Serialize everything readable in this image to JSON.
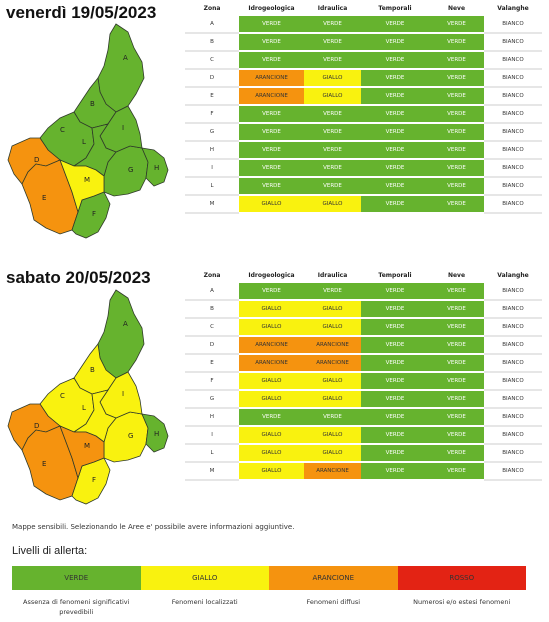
{
  "columns": [
    "Zona",
    "Idrogeologica",
    "Idraulica",
    "Temporali",
    "Neve",
    "Valanghe"
  ],
  "colors": {
    "VERDE": "#66b32e",
    "GIALLO": "#f9f20f",
    "ARANCIONE": "#f5930f",
    "ROSSO": "#e32314"
  },
  "days": [
    {
      "title": "venerdì 19/05/2023",
      "rows": [
        [
          "A",
          "VERDE",
          "VERDE",
          "VERDE",
          "VERDE",
          "BIANCO"
        ],
        [
          "B",
          "VERDE",
          "VERDE",
          "VERDE",
          "VERDE",
          "BIANCO"
        ],
        [
          "C",
          "VERDE",
          "VERDE",
          "VERDE",
          "VERDE",
          "BIANCO"
        ],
        [
          "D",
          "ARANCIONE",
          "GIALLO",
          "VERDE",
          "VERDE",
          "BIANCO"
        ],
        [
          "E",
          "ARANCIONE",
          "GIALLO",
          "VERDE",
          "VERDE",
          "BIANCO"
        ],
        [
          "F",
          "VERDE",
          "VERDE",
          "VERDE",
          "VERDE",
          "BIANCO"
        ],
        [
          "G",
          "VERDE",
          "VERDE",
          "VERDE",
          "VERDE",
          "BIANCO"
        ],
        [
          "H",
          "VERDE",
          "VERDE",
          "VERDE",
          "VERDE",
          "BIANCO"
        ],
        [
          "I",
          "VERDE",
          "VERDE",
          "VERDE",
          "VERDE",
          "BIANCO"
        ],
        [
          "L",
          "VERDE",
          "VERDE",
          "VERDE",
          "VERDE",
          "BIANCO"
        ],
        [
          "M",
          "GIALLO",
          "GIALLO",
          "VERDE",
          "VERDE",
          "BIANCO"
        ]
      ],
      "map_zone_levels": {
        "A": "VERDE",
        "B": "VERDE",
        "C": "VERDE",
        "D": "ARANCIONE",
        "E": "ARANCIONE",
        "F": "VERDE",
        "G": "VERDE",
        "H": "VERDE",
        "I": "VERDE",
        "L": "VERDE",
        "M": "GIALLO"
      }
    },
    {
      "title": "sabato 20/05/2023",
      "rows": [
        [
          "A",
          "VERDE",
          "VERDE",
          "VERDE",
          "VERDE",
          "BIANCO"
        ],
        [
          "B",
          "GIALLO",
          "GIALLO",
          "VERDE",
          "VERDE",
          "BIANCO"
        ],
        [
          "C",
          "GIALLO",
          "GIALLO",
          "VERDE",
          "VERDE",
          "BIANCO"
        ],
        [
          "D",
          "ARANCIONE",
          "ARANCIONE",
          "VERDE",
          "VERDE",
          "BIANCO"
        ],
        [
          "E",
          "ARANCIONE",
          "ARANCIONE",
          "VERDE",
          "VERDE",
          "BIANCO"
        ],
        [
          "F",
          "GIALLO",
          "GIALLO",
          "VERDE",
          "VERDE",
          "BIANCO"
        ],
        [
          "G",
          "GIALLO",
          "GIALLO",
          "VERDE",
          "VERDE",
          "BIANCO"
        ],
        [
          "H",
          "VERDE",
          "VERDE",
          "VERDE",
          "VERDE",
          "BIANCO"
        ],
        [
          "I",
          "GIALLO",
          "GIALLO",
          "VERDE",
          "VERDE",
          "BIANCO"
        ],
        [
          "L",
          "GIALLO",
          "GIALLO",
          "VERDE",
          "VERDE",
          "BIANCO"
        ],
        [
          "M",
          "GIALLO",
          "ARANCIONE",
          "VERDE",
          "VERDE",
          "BIANCO"
        ]
      ],
      "map_zone_levels": {
        "A": "VERDE",
        "B": "GIALLO",
        "C": "GIALLO",
        "D": "ARANCIONE",
        "E": "ARANCIONE",
        "F": "GIALLO",
        "G": "GIALLO",
        "H": "VERDE",
        "I": "GIALLO",
        "L": "GIALLO",
        "M": "ARANCIONE"
      }
    }
  ],
  "note": "Mappe sensibili. Selezionando le Aree e' possibile avere informazioni aggiuntive.",
  "legend": {
    "title": "Livelli di allerta:",
    "levels": [
      {
        "label": "VERDE",
        "color": "#66b32e",
        "description": "Assenza di fenomeni significativi prevedibili"
      },
      {
        "label": "GIALLO",
        "color": "#f9f20f",
        "description": "Fenomeni localizzati"
      },
      {
        "label": "ARANCIONE",
        "color": "#f5930f",
        "description": "Fenomeni diffusi"
      },
      {
        "label": "ROSSO",
        "color": "#e32314",
        "description": "Numerosi e/o estesi fenomeni"
      }
    ]
  }
}
